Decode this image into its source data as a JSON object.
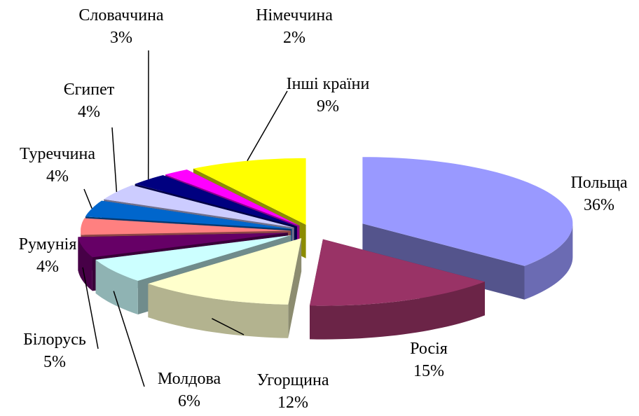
{
  "chart_data": {
    "type": "pie3d",
    "categories": [
      "Польща",
      "Росія",
      "Угорщина",
      "Молдова",
      "Білорусь",
      "Румунія",
      "Туреччина",
      "Єгипет",
      "Словаччина",
      "Німеччина",
      "Інші країни"
    ],
    "values": [
      36,
      15,
      12,
      6,
      5,
      4,
      4,
      4,
      3,
      2,
      9
    ],
    "value_labels": [
      "36%",
      "15%",
      "12%",
      "6%",
      "5%",
      "4%",
      "4%",
      "4%",
      "3%",
      "2%",
      "9%"
    ],
    "colors": [
      "#9999ff",
      "#993366",
      "#ffffcc",
      "#ccffff",
      "#660066",
      "#ff8080",
      "#0066cc",
      "#ccccff",
      "#000080",
      "#ff00ff",
      "#ffff00"
    ]
  }
}
